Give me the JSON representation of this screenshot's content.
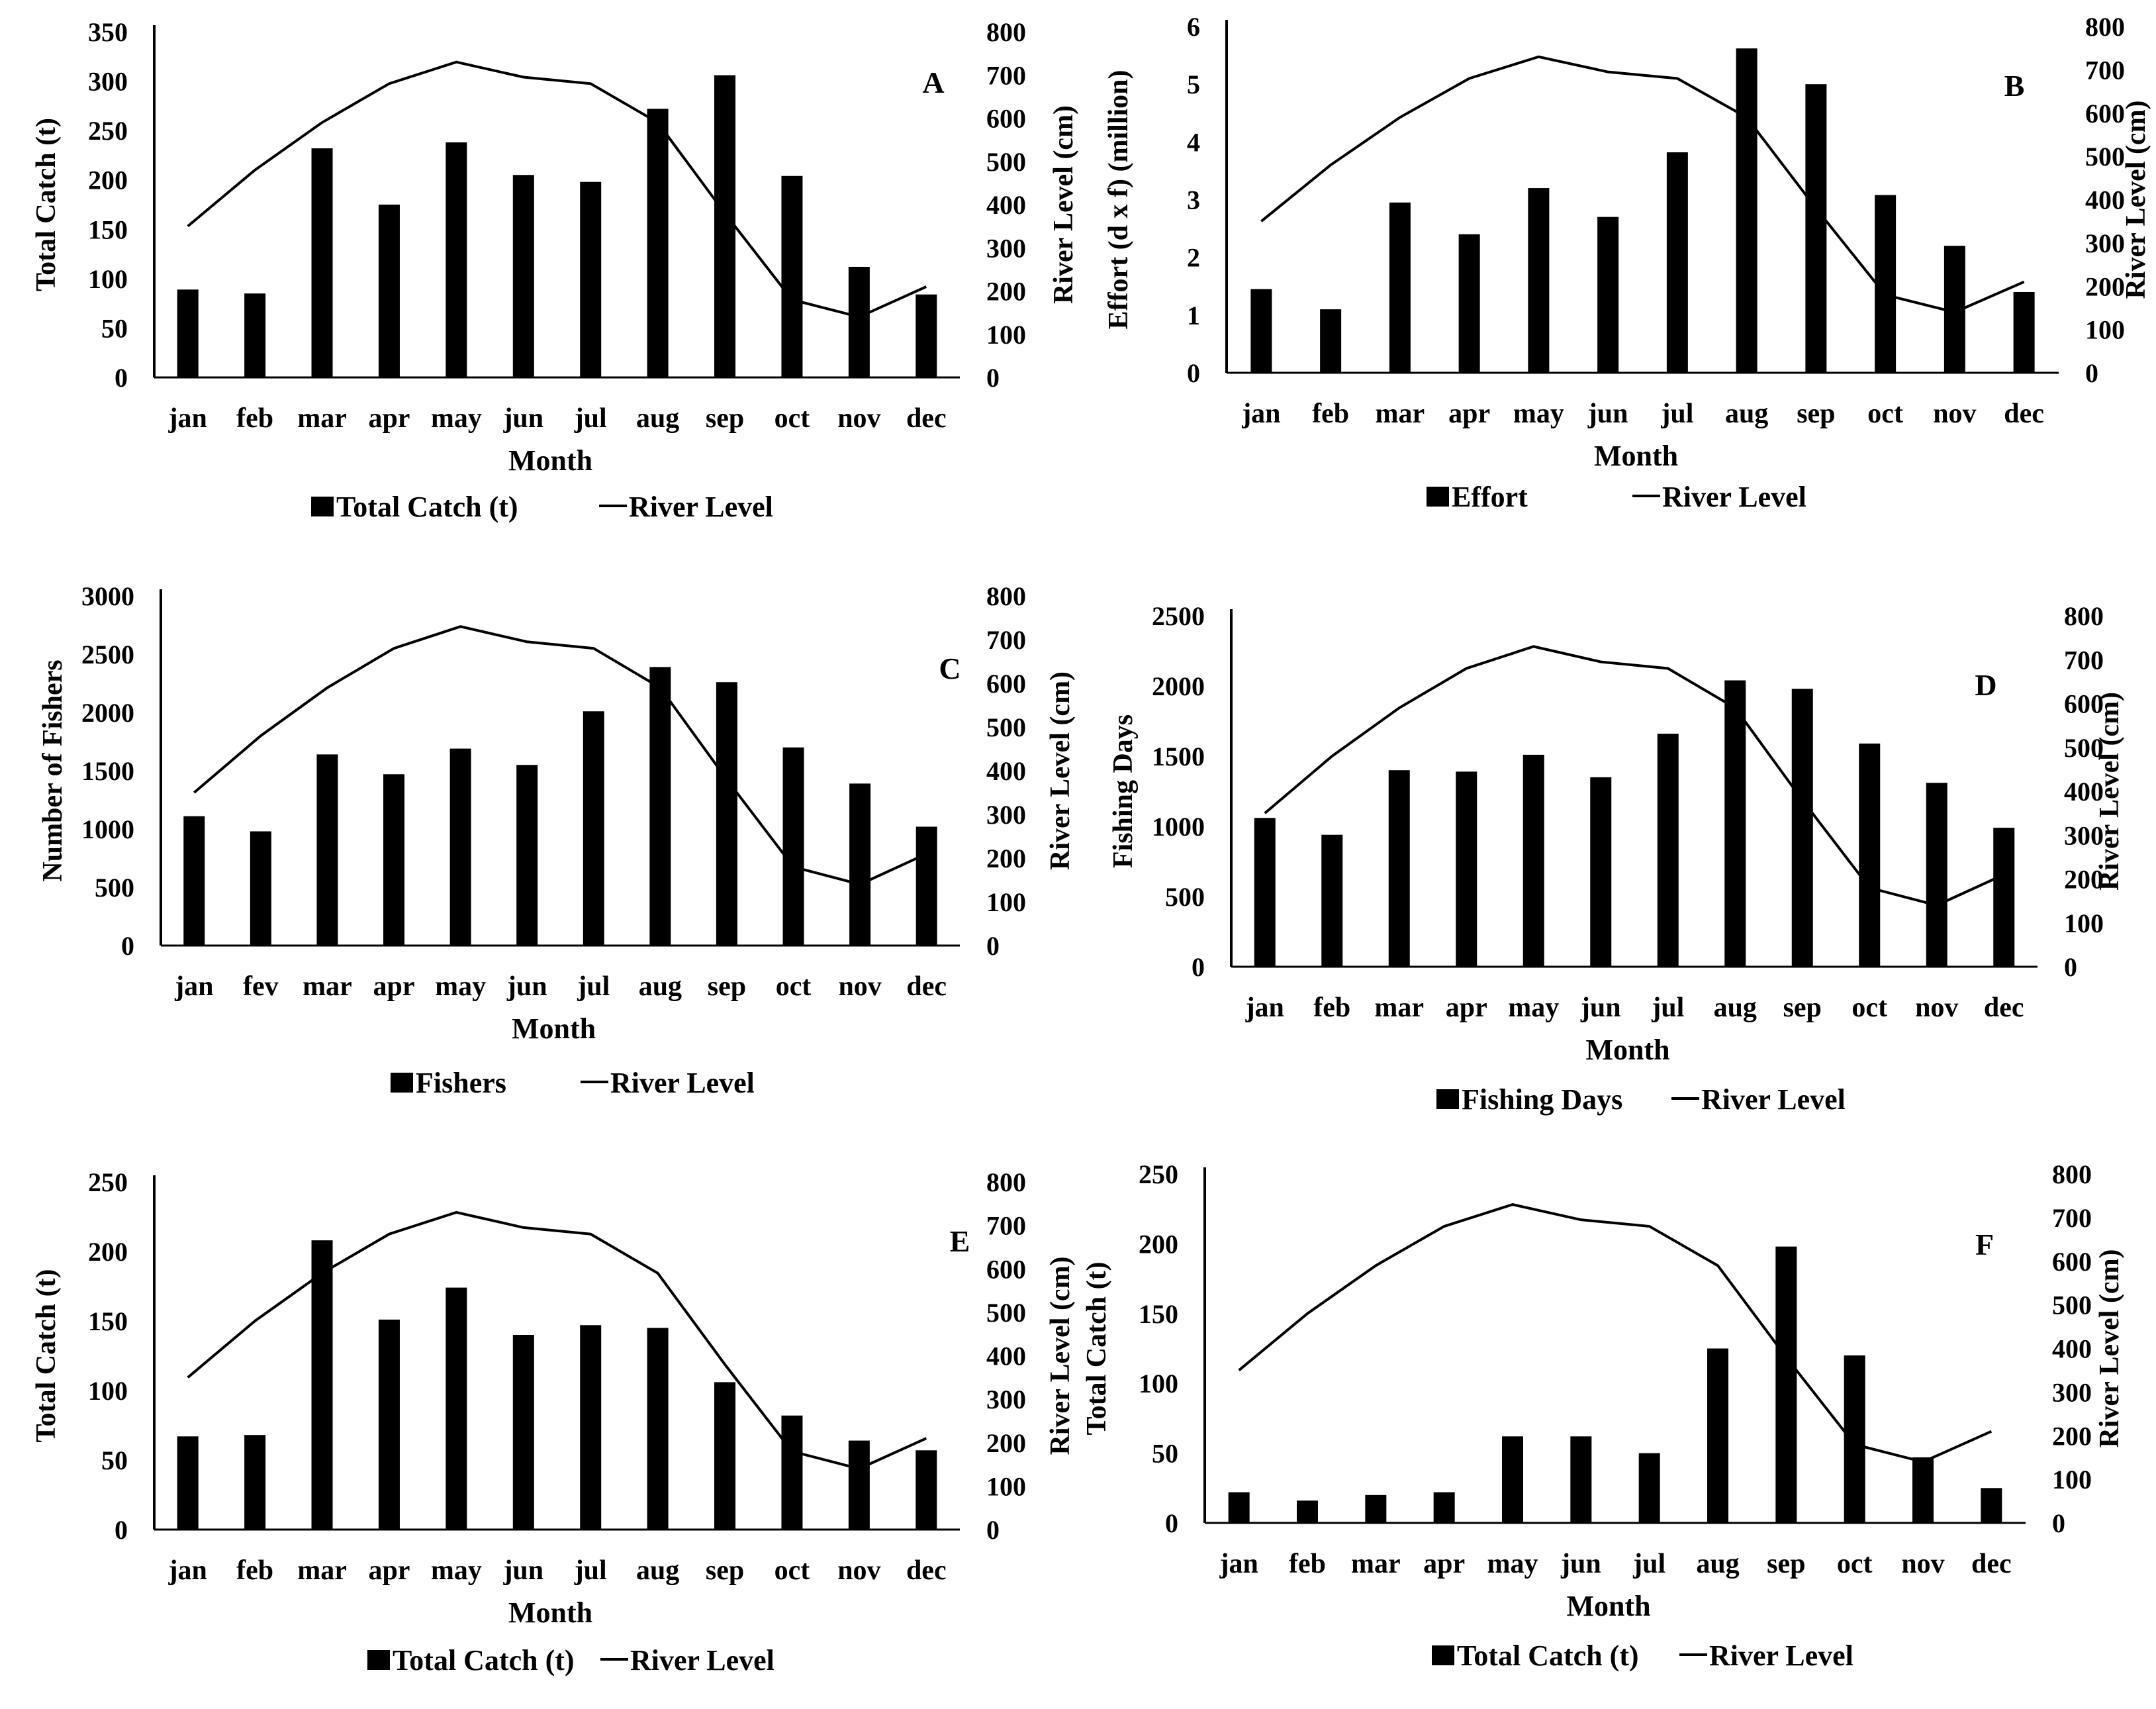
{
  "colors": {
    "bar": "#000000",
    "line": "#000000",
    "axis": "#000000",
    "background": "#ffffff"
  },
  "chart_data": [
    {
      "panel": "A",
      "type": "bar",
      "categories": [
        "jan",
        "feb",
        "mar",
        "apr",
        "may",
        "jun",
        "jul",
        "aug",
        "sep",
        "oct",
        "nov",
        "dec"
      ],
      "xlabel": "Month",
      "ylabel": "Total Catch (t)",
      "y2label": "River Level (cm)",
      "ylim": [
        0,
        350
      ],
      "yticks": [
        0,
        50,
        100,
        150,
        200,
        250,
        300,
        350
      ],
      "y2lim": [
        0,
        800
      ],
      "y2ticks": [
        0,
        100,
        200,
        300,
        400,
        500,
        600,
        700,
        800
      ],
      "series": [
        {
          "name": "Total Catch (t)",
          "type": "bar",
          "axis": "left",
          "values": [
            89,
            85,
            232,
            175,
            238,
            205,
            198,
            272,
            306,
            204,
            112,
            84
          ]
        },
        {
          "name": "River Level",
          "type": "line",
          "axis": "right",
          "values": [
            350,
            480,
            590,
            680,
            730,
            695,
            680,
            590,
            380,
            180,
            140,
            210
          ]
        }
      ],
      "legend": "bottom"
    },
    {
      "panel": "B",
      "type": "bar",
      "categories": [
        "jan",
        "feb",
        "mar",
        "apr",
        "may",
        "jun",
        "jul",
        "aug",
        "sep",
        "oct",
        "nov",
        "dec"
      ],
      "xlabel": "Month",
      "ylabel": "Effort (d x f)  (million)",
      "y2label": "River Level (cm)",
      "ylim": [
        0,
        6
      ],
      "yticks": [
        0,
        1,
        2,
        3,
        4,
        5,
        6
      ],
      "y2lim": [
        0,
        800
      ],
      "y2ticks": [
        0,
        100,
        200,
        300,
        400,
        500,
        600,
        700,
        800
      ],
      "series": [
        {
          "name": "Effort",
          "type": "bar",
          "axis": "left",
          "values": [
            1.45,
            1.1,
            2.95,
            2.4,
            3.2,
            2.7,
            3.82,
            5.62,
            5.0,
            3.08,
            2.2,
            1.4
          ]
        },
        {
          "name": "River Level",
          "type": "line",
          "axis": "right",
          "values": [
            350,
            480,
            590,
            680,
            730,
            695,
            680,
            590,
            380,
            180,
            140,
            210
          ]
        }
      ],
      "legend": "bottom"
    },
    {
      "panel": "C",
      "type": "bar",
      "categories": [
        "jan",
        "fev",
        "mar",
        "apr",
        "may",
        "jun",
        "jul",
        "aug",
        "sep",
        "oct",
        "nov",
        "dec"
      ],
      "xlabel": "Month",
      "ylabel": "Number of Fishers",
      "y2label": "River Level (cm)",
      "ylim": [
        0,
        3000
      ],
      "yticks": [
        0,
        500,
        1000,
        1500,
        2000,
        2500,
        3000
      ],
      "y2lim": [
        0,
        800
      ],
      "y2ticks": [
        0,
        100,
        200,
        300,
        400,
        500,
        600,
        700,
        800
      ],
      "series": [
        {
          "name": "Fishers",
          "type": "bar",
          "axis": "left",
          "values": [
            1110,
            980,
            1640,
            1470,
            1690,
            1550,
            2010,
            2390,
            2260,
            1700,
            1390,
            1020
          ]
        },
        {
          "name": "River Level",
          "type": "line",
          "axis": "right",
          "values": [
            350,
            480,
            590,
            680,
            730,
            695,
            680,
            590,
            380,
            180,
            140,
            210
          ]
        }
      ],
      "legend": "bottom"
    },
    {
      "panel": "D",
      "type": "bar",
      "categories": [
        "jan",
        "feb",
        "mar",
        "apr",
        "may",
        "jun",
        "jul",
        "aug",
        "sep",
        "oct",
        "nov",
        "dec"
      ],
      "xlabel": "Month",
      "ylabel": "Fishing Days",
      "y2label": "River Level (cm)",
      "ylim": [
        0,
        2500
      ],
      "yticks": [
        0,
        500,
        1000,
        1500,
        2000,
        2500
      ],
      "y2lim": [
        0,
        800
      ],
      "y2ticks": [
        0,
        100,
        200,
        300,
        400,
        500,
        600,
        700,
        800
      ],
      "series": [
        {
          "name": "Fishing Days",
          "type": "bar",
          "axis": "left",
          "values": [
            1060,
            940,
            1400,
            1390,
            1510,
            1350,
            1660,
            2040,
            1980,
            1590,
            1310,
            990
          ]
        },
        {
          "name": "River Level",
          "type": "line",
          "axis": "right",
          "values": [
            350,
            480,
            590,
            680,
            730,
            695,
            680,
            590,
            380,
            180,
            140,
            210
          ]
        }
      ],
      "legend": "bottom"
    },
    {
      "panel": "E",
      "type": "bar",
      "categories": [
        "jan",
        "feb",
        "mar",
        "apr",
        "may",
        "jun",
        "jul",
        "aug",
        "sep",
        "oct",
        "nov",
        "dec"
      ],
      "xlabel": "Month",
      "ylabel": "Total Catch (t)",
      "y2label": "River Level (cm)",
      "ylim": [
        0,
        250
      ],
      "yticks": [
        0,
        50,
        100,
        150,
        200,
        250
      ],
      "y2lim": [
        0,
        800
      ],
      "y2ticks": [
        0,
        100,
        200,
        300,
        400,
        500,
        600,
        700,
        800
      ],
      "series": [
        {
          "name": "Total Catch (t)",
          "type": "bar",
          "axis": "left",
          "values": [
            67,
            68,
            208,
            151,
            174,
            140,
            147,
            145,
            106,
            82,
            64,
            57
          ]
        },
        {
          "name": "River Level",
          "type": "line",
          "axis": "right",
          "values": [
            350,
            480,
            590,
            680,
            730,
            695,
            680,
            590,
            380,
            180,
            140,
            210
          ]
        }
      ],
      "legend": "bottom"
    },
    {
      "panel": "F",
      "type": "bar",
      "categories": [
        "jan",
        "feb",
        "mar",
        "apr",
        "may",
        "jun",
        "jul",
        "aug",
        "sep",
        "oct",
        "nov",
        "dec"
      ],
      "xlabel": "Month",
      "ylabel": "Total Catch (t)",
      "y2label": "River Level (cm)",
      "ylim": [
        0,
        250
      ],
      "yticks": [
        0,
        50,
        100,
        150,
        200,
        250
      ],
      "y2lim": [
        0,
        800
      ],
      "y2ticks": [
        0,
        100,
        200,
        300,
        400,
        500,
        600,
        700,
        800
      ],
      "series": [
        {
          "name": "Total Catch (t)",
          "type": "bar",
          "axis": "left",
          "values": [
            22,
            16,
            20,
            22,
            62,
            62,
            50,
            125,
            198,
            120,
            47,
            25
          ]
        },
        {
          "name": "River Level",
          "type": "line",
          "axis": "right",
          "values": [
            350,
            480,
            590,
            680,
            730,
            695,
            680,
            590,
            380,
            180,
            140,
            210
          ]
        }
      ],
      "legend": "bottom"
    }
  ]
}
